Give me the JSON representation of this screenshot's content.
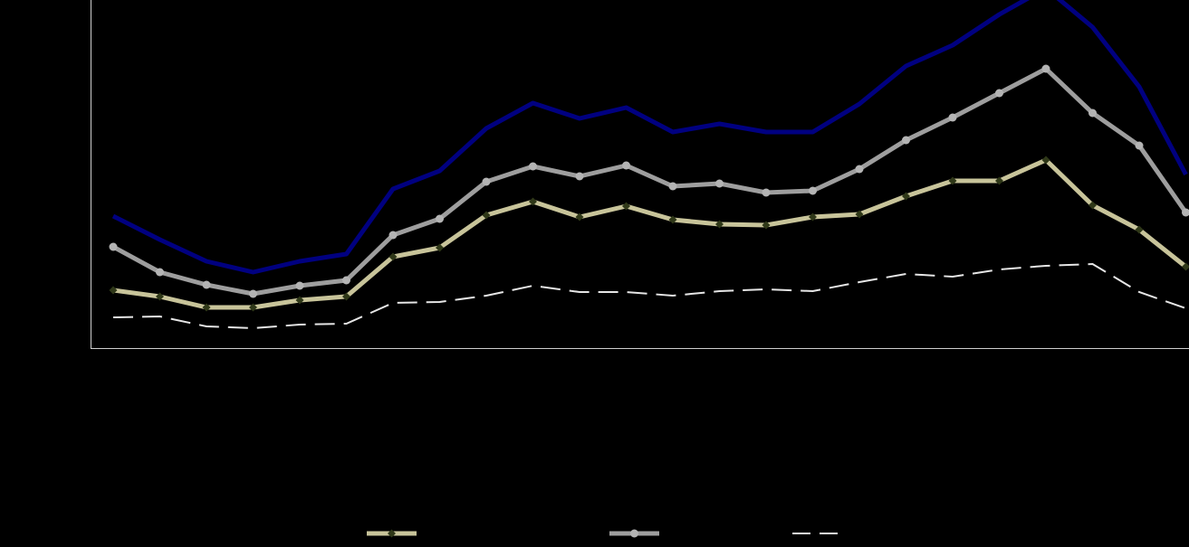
{
  "chart_data": {
    "type": "line",
    "title": "",
    "xlabel": "",
    "ylabel": "",
    "x": [
      1,
      2,
      3,
      4,
      5,
      6,
      7,
      8,
      9,
      10,
      11,
      12,
      13,
      14,
      15,
      16,
      17,
      18,
      19,
      20,
      21,
      22,
      23,
      24
    ],
    "ylim": [
      0,
      385
    ],
    "grid": false,
    "legend_position": "bottom",
    "series": [
      {
        "id": "navy",
        "color": "#000080",
        "style": "solid-thick",
        "values": [
          146,
          120,
          96,
          84,
          96,
          104,
          176,
          196,
          243,
          271,
          254,
          266,
          239,
          248,
          239,
          239,
          270,
          312,
          335,
          369,
          398,
          355,
          289,
          192
        ]
      },
      {
        "id": "grey-circle",
        "color": "#9e9e9e",
        "style": "solid-markers",
        "values": [
          112,
          84,
          70,
          60,
          69,
          75,
          125,
          143,
          184,
          201,
          190,
          202,
          179,
          182,
          172,
          174,
          198,
          230,
          255,
          282,
          309,
          260,
          224,
          150
        ]
      },
      {
        "id": "khaki-diamond",
        "color": "#c8c49a",
        "marker_color": "#2f3818",
        "style": "solid-markers",
        "values": [
          64,
          57,
          45,
          45,
          53,
          57,
          101,
          111,
          147,
          162,
          145,
          157,
          142,
          137,
          136,
          145,
          148,
          168,
          185,
          185,
          208,
          158,
          131,
          90
        ]
      },
      {
        "id": "white-dash",
        "color": "#e6e6e6",
        "style": "dashed",
        "values": [
          34,
          35,
          24,
          22,
          26,
          27,
          50,
          51,
          58,
          69,
          62,
          62,
          58,
          63,
          65,
          63,
          73,
          82,
          79,
          87,
          91,
          93,
          62,
          44
        ]
      }
    ],
    "legend": [
      {
        "series_id": "khaki-diamond",
        "label": ""
      },
      {
        "series_id": "grey-circle",
        "label": ""
      },
      {
        "series_id": "white-dash",
        "label": ""
      }
    ]
  }
}
